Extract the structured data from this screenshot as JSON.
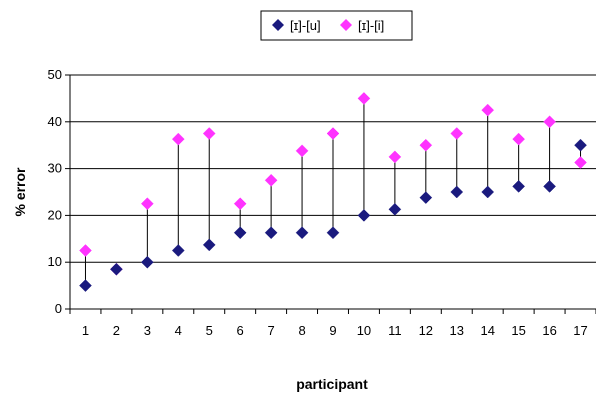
{
  "chart_data": {
    "type": "scatter",
    "title": "",
    "xlabel": "participant",
    "ylabel": "% error",
    "categories": [
      "1",
      "2",
      "3",
      "4",
      "5",
      "6",
      "7",
      "8",
      "9",
      "10",
      "11",
      "12",
      "13",
      "14",
      "15",
      "16",
      "17"
    ],
    "ylim": [
      0,
      50
    ],
    "yticks": [
      "0",
      "10",
      "20",
      "30",
      "40",
      "50"
    ],
    "grid": true,
    "legend_position": "top",
    "drop_lines": true,
    "series": [
      {
        "name": "[ɪ]-[u]",
        "color": "#1a1a7e",
        "values": [
          5,
          8.5,
          10,
          12.5,
          13.7,
          16.3,
          16.3,
          16.3,
          16.3,
          20,
          21.3,
          23.8,
          25,
          25,
          26.2,
          26.2,
          35
        ]
      },
      {
        "name": "[ɪ]-[i]",
        "color": "#ff33ff",
        "values": [
          12.5,
          8.5,
          22.5,
          36.3,
          37.5,
          22.5,
          27.5,
          33.8,
          37.5,
          45,
          32.5,
          35,
          37.5,
          42.5,
          36.3,
          40,
          31.3
        ]
      }
    ]
  }
}
